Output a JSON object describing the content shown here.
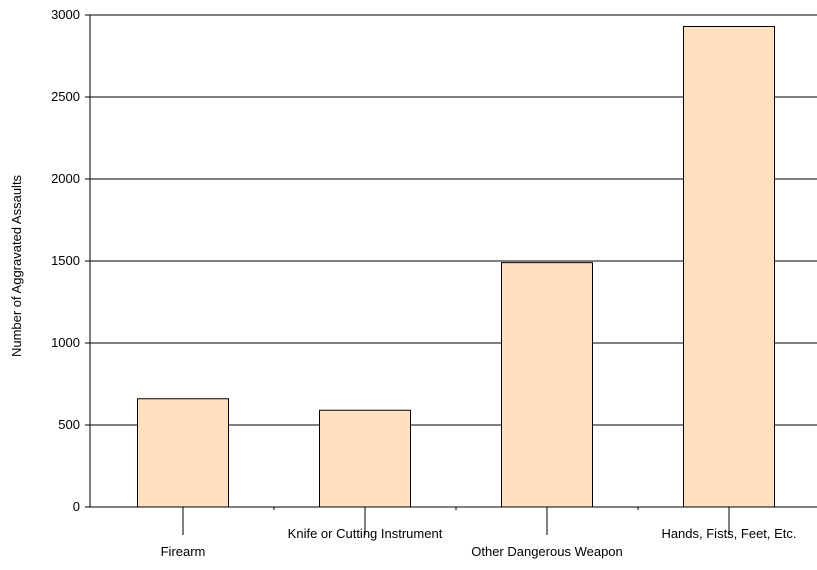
{
  "colors": {
    "bar_fill": "#FFE0C0",
    "bar_stroke": "#000000",
    "grid": "#000000",
    "background": "#ffffff"
  },
  "chart_data": {
    "type": "bar",
    "title": "",
    "xlabel": "",
    "ylabel": "Number of Aggravated Assaults",
    "categories": [
      "Firearm",
      "Knife or Cutting Instrument",
      "Other Dangerous Weapon",
      "Hands, Fists, Feet, Etc."
    ],
    "values": [
      660,
      590,
      1490,
      2930
    ],
    "ylim": [
      0,
      3000
    ],
    "yticks": [
      "0",
      "500",
      "1000",
      "1500",
      "2000",
      "2500",
      "3000"
    ],
    "grid": true,
    "legend": "none"
  }
}
